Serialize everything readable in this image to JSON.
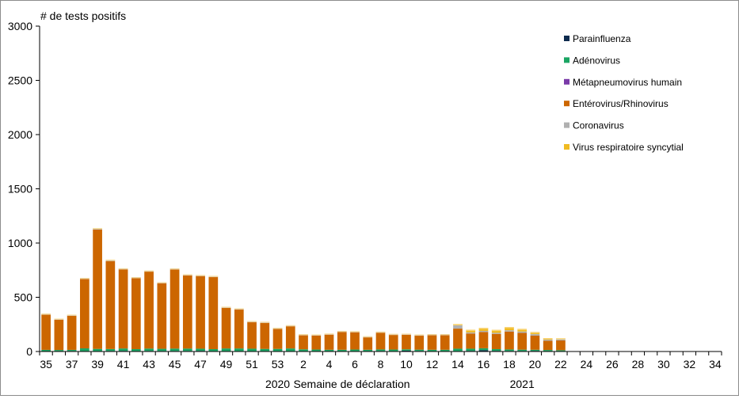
{
  "chart_data": {
    "type": "bar",
    "stacked": true,
    "ylabel": "# de tests positifs",
    "xlabel": "Semaine de déclaration",
    "ylim": [
      0,
      3000
    ],
    "yticks": [
      0,
      500,
      1000,
      1500,
      2000,
      2500,
      3000
    ],
    "year_labels": [
      {
        "text": "2020",
        "at_week": 53
      },
      {
        "text": "2021",
        "at_week": 19
      }
    ],
    "legend_position": "top-right",
    "categories": [
      35,
      36,
      37,
      38,
      39,
      40,
      41,
      42,
      43,
      44,
      45,
      46,
      47,
      48,
      49,
      50,
      51,
      52,
      53,
      1,
      2,
      3,
      4,
      5,
      6,
      7,
      8,
      9,
      10,
      11,
      12,
      13,
      14,
      15,
      16,
      17,
      18,
      19,
      20,
      21,
      22,
      23,
      24,
      25,
      26,
      27,
      28,
      29,
      30,
      31,
      32,
      33,
      34
    ],
    "x_tick_labels": [
      "35",
      "",
      "37",
      "",
      "39",
      "",
      "41",
      "",
      "43",
      "",
      "45",
      "",
      "47",
      "",
      "49",
      "",
      "51",
      "",
      "53",
      "",
      "2",
      "",
      "4",
      "",
      "6",
      "",
      "8",
      "",
      "10",
      "",
      "12",
      "",
      "14",
      "",
      "16",
      "",
      "18",
      "",
      "20",
      "",
      "22",
      "",
      "24",
      "",
      "26",
      "",
      "28",
      "",
      "30",
      "",
      "32",
      "",
      "34"
    ],
    "series": [
      {
        "name": "Parainfluenza",
        "color": "#0d2b4e",
        "values": [
          3,
          4,
          5,
          4,
          4,
          5,
          6,
          4,
          5,
          5,
          5,
          5,
          6,
          4,
          4,
          4,
          4,
          4,
          4,
          4,
          4,
          4,
          4,
          4,
          4,
          4,
          5,
          4,
          8,
          5,
          4,
          4,
          4,
          6,
          12,
          6,
          5,
          5,
          6,
          4,
          4,
          0,
          0,
          0,
          0,
          0,
          0,
          0,
          0,
          0,
          0,
          0,
          0
        ]
      },
      {
        "name": "Adénovirus",
        "color": "#1aa563",
        "values": [
          12,
          10,
          10,
          25,
          20,
          18,
          22,
          18,
          22,
          20,
          22,
          22,
          20,
          18,
          24,
          24,
          22,
          20,
          20,
          24,
          16,
          14,
          12,
          12,
          14,
          12,
          14,
          14,
          12,
          12,
          12,
          12,
          22,
          20,
          18,
          16,
          14,
          12,
          10,
          10,
          8,
          0,
          0,
          0,
          0,
          0,
          0,
          0,
          0,
          0,
          0,
          0,
          0
        ]
      },
      {
        "name": "Métapneumovirus humain",
        "color": "#7a3aa8",
        "values": [
          0,
          0,
          0,
          0,
          0,
          0,
          0,
          0,
          0,
          0,
          0,
          0,
          0,
          0,
          0,
          0,
          0,
          0,
          0,
          0,
          0,
          0,
          0,
          0,
          0,
          0,
          0,
          0,
          0,
          0,
          0,
          0,
          0,
          0,
          0,
          0,
          0,
          0,
          0,
          0,
          0,
          0,
          0,
          0,
          0,
          0,
          0,
          0,
          0,
          0,
          0,
          0,
          0
        ]
      },
      {
        "name": "Entérovirus/Rhinovirus",
        "color": "#cc6600",
        "values": [
          325,
          280,
          315,
          640,
          1100,
          810,
          730,
          655,
          710,
          605,
          730,
          675,
          670,
          665,
          375,
          360,
          245,
          240,
          185,
          205,
          130,
          130,
          140,
          165,
          160,
          115,
          155,
          135,
          135,
          130,
          135,
          135,
          185,
          140,
          150,
          140,
          165,
          155,
          130,
          85,
          90,
          0,
          0,
          0,
          0,
          0,
          0,
          0,
          0,
          0,
          0,
          0,
          0
        ]
      },
      {
        "name": "Coronavirus",
        "color": "#b0b0b0",
        "values": [
          6,
          6,
          6,
          6,
          8,
          8,
          6,
          6,
          6,
          6,
          6,
          6,
          6,
          6,
          6,
          6,
          6,
          6,
          6,
          6,
          6,
          6,
          6,
          6,
          6,
          6,
          6,
          6,
          6,
          6,
          6,
          6,
          30,
          10,
          10,
          10,
          12,
          12,
          14,
          10,
          10,
          0,
          0,
          0,
          0,
          0,
          0,
          0,
          0,
          0,
          0,
          0,
          0
        ]
      },
      {
        "name": "Virus respiratoire syncytial",
        "color": "#f0bb22",
        "values": [
          3,
          3,
          3,
          3,
          5,
          5,
          3,
          3,
          3,
          3,
          3,
          3,
          3,
          3,
          3,
          3,
          3,
          3,
          3,
          3,
          3,
          3,
          3,
          3,
          3,
          3,
          3,
          3,
          3,
          3,
          3,
          3,
          12,
          25,
          28,
          28,
          30,
          25,
          20,
          15,
          10,
          0,
          0,
          0,
          0,
          0,
          0,
          0,
          0,
          0,
          0,
          0,
          0
        ]
      }
    ]
  }
}
